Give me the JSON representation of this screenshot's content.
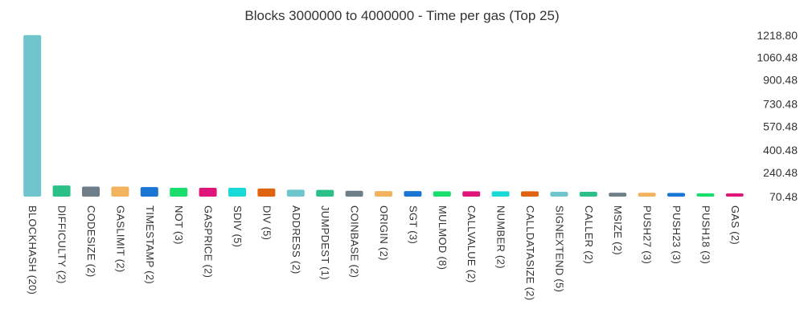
{
  "chart_data": {
    "type": "bar",
    "title": "Blocks 3000000 to 4000000 - Time per gas (Top 25)",
    "xlabel": "",
    "ylabel": "",
    "y_axis_position": "right",
    "yticks": [
      "1218.80",
      "1060.48",
      "900.48",
      "730.48",
      "570.48",
      "400.48",
      "240.48",
      "70.48"
    ],
    "ylim": [
      70.48,
      1218.8
    ],
    "grid": false,
    "legend": "none",
    "categories": [
      "BLOCKHASH (20)",
      "DIFFICULTY (2)",
      "CODESIZE (2)",
      "GASLIMIT (2)",
      "TIMESTAMP (2)",
      "NOT (3)",
      "GASPRICE (2)",
      "SDIV (5)",
      "DIV (5)",
      "ADDRESS (2)",
      "JUMPDEST (1)",
      "COINBASE (2)",
      "ORIGIN (2)",
      "SGT (3)",
      "MULMOD (8)",
      "CALLVALUE (2)",
      "NUMBER (2)",
      "CALLDATASIZE (2)",
      "SIGNEXTEND (5)",
      "CALLER (2)",
      "MSIZE (2)",
      "PUSH27 (3)",
      "PUSH23 (3)",
      "PUSH18 (3)",
      "GAS (2)"
    ],
    "values": [
      1220,
      150,
      142,
      142,
      138,
      133,
      133,
      133,
      128,
      120,
      118,
      112,
      110,
      110,
      108,
      108,
      108,
      108,
      105,
      105,
      98,
      98,
      97,
      94,
      90
    ],
    "colors": [
      "#6fc5cc",
      "#2bc087",
      "#6f7f89",
      "#f2b35e",
      "#1976d2",
      "#19dd6c",
      "#e0157a",
      "#19d9d9",
      "#e0640f",
      "#6fc5cc",
      "#2bc087",
      "#6f7f89",
      "#f2b35e",
      "#1976d2",
      "#19dd6c",
      "#e0157a",
      "#19d9d9",
      "#e0640f",
      "#6fc5cc",
      "#2bc087",
      "#6f7f89",
      "#f2b35e",
      "#1976d2",
      "#19dd6c",
      "#e0157a"
    ]
  }
}
